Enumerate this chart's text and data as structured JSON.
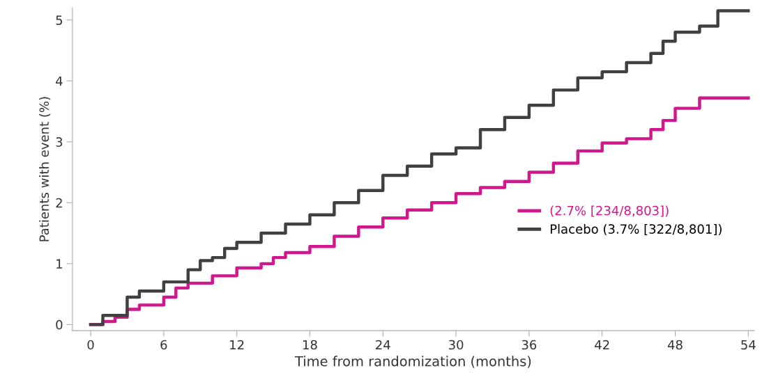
{
  "chart_data": {
    "type": "step",
    "xlabel": "Time from randomization (months)",
    "ylabel": "Patients with event (%)",
    "xlim": [
      -1.5,
      54.5
    ],
    "xticks": [
      0,
      6,
      12,
      18,
      24,
      30,
      36,
      42,
      48,
      54
    ],
    "ylim": [
      -0.1,
      5.2
    ],
    "yticks": [
      0,
      1,
      2,
      3,
      4,
      5
    ],
    "grid": false,
    "legend": "right",
    "marker": "none",
    "line_style": "solid",
    "series": [
      {
        "name": "(2.7% [234/8,803])",
        "color": "#d0178e",
        "x": [
          0,
          1,
          2,
          3,
          4,
          6,
          7,
          8,
          10,
          12,
          14,
          15,
          16,
          18,
          20,
          22,
          24,
          26,
          28,
          30,
          32,
          34,
          36,
          38,
          40,
          42,
          44,
          46,
          47,
          48,
          50,
          54
        ],
        "values": [
          0,
          0.05,
          0.12,
          0.25,
          0.32,
          0.45,
          0.6,
          0.68,
          0.8,
          0.93,
          1.0,
          1.1,
          1.18,
          1.28,
          1.45,
          1.6,
          1.75,
          1.88,
          2.0,
          2.15,
          2.25,
          2.35,
          2.5,
          2.65,
          2.85,
          2.98,
          3.05,
          3.2,
          3.35,
          3.55,
          3.72,
          3.72
        ]
      },
      {
        "name": "Placebo (3.7% [322/8,801])",
        "color": "#404040",
        "x": [
          0,
          1,
          3,
          4,
          6,
          8,
          9,
          10,
          11,
          12,
          14,
          16,
          18,
          20,
          22,
          24,
          26,
          28,
          30,
          32,
          34,
          36,
          38,
          40,
          42,
          44,
          46,
          47,
          48,
          50,
          51.5,
          54
        ],
        "values": [
          0,
          0.15,
          0.45,
          0.55,
          0.7,
          0.9,
          1.05,
          1.1,
          1.25,
          1.35,
          1.5,
          1.65,
          1.8,
          2.0,
          2.2,
          2.45,
          2.6,
          2.8,
          2.9,
          3.2,
          3.4,
          3.6,
          3.85,
          4.05,
          4.15,
          4.3,
          4.45,
          4.65,
          4.8,
          4.9,
          5.15,
          5.15
        ]
      }
    ]
  }
}
